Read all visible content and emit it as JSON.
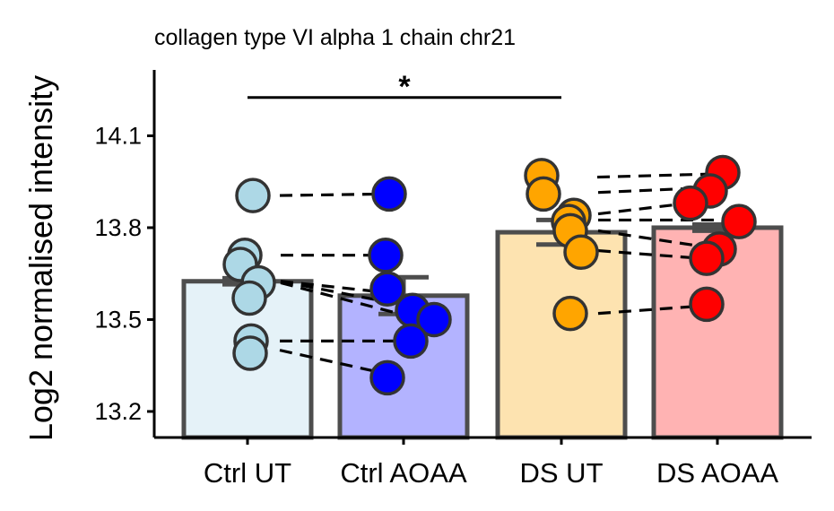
{
  "chart_data": {
    "type": "bar",
    "title": "collagen type VI alpha 1 chain chr21",
    "xlabel": "",
    "ylabel": "Log2 normalised intensity",
    "ylim": [
      13.115,
      14.315
    ],
    "yticks": [
      "13.2",
      "13.5",
      "13.8",
      "14.1"
    ],
    "categories": [
      "Ctrl UT",
      "Ctrl AOAA",
      "DS UT",
      "DS AOAA"
    ],
    "values": [
      13.625,
      13.578,
      13.785,
      13.8
    ],
    "errors": [
      0.01,
      0.06,
      0.04,
      0.01
    ],
    "bar_colors": [
      "#e5f2f8",
      "#b3b3ff",
      "#fde3b0",
      "#ffb3b3"
    ],
    "point_colors": [
      "#add8e6",
      "#0000ff",
      "#ffa500",
      "#ff0000"
    ],
    "points": [
      [
        13.905,
        13.71,
        13.68,
        13.62,
        13.57,
        13.43,
        13.39
      ],
      [
        13.91,
        13.71,
        13.6,
        13.53,
        13.5,
        13.43,
        13.31
      ],
      [
        13.97,
        13.91,
        13.84,
        13.82,
        13.79,
        13.72,
        13.52
      ],
      [
        13.98,
        13.92,
        13.88,
        13.82,
        13.73,
        13.7,
        13.55
      ]
    ],
    "pair_lines": [
      {
        "from_group": 0,
        "to_group": 1,
        "pairs": [
          [
            13.905,
            13.91
          ],
          [
            13.71,
            13.71
          ],
          [
            13.625,
            13.59
          ],
          [
            13.625,
            13.55
          ],
          [
            13.62,
            13.5
          ],
          [
            13.43,
            13.43
          ],
          [
            13.4,
            13.33
          ]
        ]
      },
      {
        "from_group": 2,
        "to_group": 3,
        "pairs": [
          [
            13.965,
            13.975
          ],
          [
            13.915,
            13.93
          ],
          [
            13.845,
            13.885
          ],
          [
            13.825,
            13.825
          ],
          [
            13.79,
            13.74
          ],
          [
            13.725,
            13.7
          ],
          [
            13.52,
            13.545
          ]
        ]
      }
    ],
    "significance": {
      "from_category": "Ctrl UT",
      "to_category": "DS UT",
      "label": "*",
      "y": 14.225
    }
  }
}
